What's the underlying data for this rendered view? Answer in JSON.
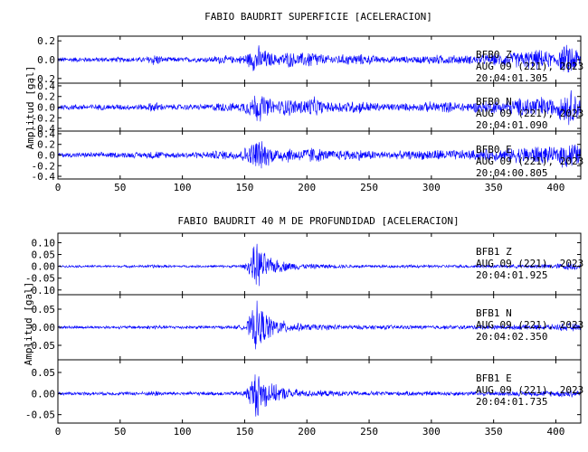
{
  "chart_data": [
    {
      "type": "line",
      "title": "FABIO BAUDRIT SUPERFICIE [ACELERACION]",
      "xlabel": "",
      "ylabel": "Amplitud [gal]",
      "xlim": [
        0,
        420
      ],
      "xticks": [
        0,
        50,
        100,
        150,
        200,
        250,
        300,
        350,
        400
      ],
      "line_color": "#0000ff",
      "grid": false,
      "panels": [
        {
          "name": "BFB0 Z",
          "ylim": [
            -0.25,
            0.25
          ],
          "yticks": [
            0.2,
            0.0,
            -0.2
          ],
          "ytick_labels": [
            "0.2",
            "0.0",
            "-0.2"
          ],
          "annotation": [
            "BFB0   Z",
            "AUG 09 (221), 2023",
            "20:04:01.305"
          ],
          "envelope": [
            [
              0,
              0.03
            ],
            [
              70,
              0.03
            ],
            [
              78,
              0.08
            ],
            [
              85,
              0.03
            ],
            [
              120,
              0.03
            ],
            [
              130,
              0.05
            ],
            [
              145,
              0.04
            ],
            [
              155,
              0.1
            ],
            [
              160,
              0.19
            ],
            [
              163,
              0.14
            ],
            [
              175,
              0.06
            ],
            [
              185,
              0.1
            ],
            [
              192,
              0.07
            ],
            [
              205,
              0.11
            ],
            [
              215,
              0.05
            ],
            [
              240,
              0.07
            ],
            [
              260,
              0.04
            ],
            [
              290,
              0.04
            ],
            [
              300,
              0.06
            ],
            [
              330,
              0.05
            ],
            [
              360,
              0.08
            ],
            [
              385,
              0.12
            ],
            [
              400,
              0.08
            ],
            [
              405,
              0.15
            ],
            [
              412,
              0.2
            ],
            [
              420,
              0.1
            ]
          ]
        },
        {
          "name": "BFB0 N",
          "ylim": [
            -0.45,
            0.45
          ],
          "yticks": [
            0.4,
            0.2,
            0.0,
            -0.2,
            -0.4
          ],
          "ytick_labels": [
            "0.4",
            "0.2",
            "0.0",
            "-0.2",
            "-0.4"
          ],
          "annotation": [
            "BFB0   N",
            "AUG 09 (221), 2023",
            "20:04:01.090"
          ],
          "envelope": [
            [
              0,
              0.06
            ],
            [
              70,
              0.06
            ],
            [
              78,
              0.12
            ],
            [
              85,
              0.06
            ],
            [
              120,
              0.06
            ],
            [
              130,
              0.1
            ],
            [
              145,
              0.08
            ],
            [
              155,
              0.2
            ],
            [
              160,
              0.35
            ],
            [
              163,
              0.28
            ],
            [
              175,
              0.12
            ],
            [
              185,
              0.2
            ],
            [
              192,
              0.14
            ],
            [
              205,
              0.22
            ],
            [
              215,
              0.1
            ],
            [
              240,
              0.14
            ],
            [
              260,
              0.08
            ],
            [
              290,
              0.08
            ],
            [
              300,
              0.12
            ],
            [
              330,
              0.1
            ],
            [
              360,
              0.15
            ],
            [
              385,
              0.24
            ],
            [
              400,
              0.16
            ],
            [
              405,
              0.3
            ],
            [
              412,
              0.38
            ],
            [
              420,
              0.2
            ]
          ]
        },
        {
          "name": "BFB0 E",
          "ylim": [
            -0.45,
            0.45
          ],
          "yticks": [
            0.4,
            0.2,
            0.0,
            -0.2,
            -0.4
          ],
          "ytick_labels": [
            "0.4",
            "0.2",
            "0.0",
            "-0.2",
            "-0.4"
          ],
          "annotation": [
            "BFB0   E",
            "AUG 09 (221), 2023",
            "20:04:00.805"
          ],
          "envelope": [
            [
              0,
              0.05
            ],
            [
              70,
              0.06
            ],
            [
              78,
              0.1
            ],
            [
              85,
              0.06
            ],
            [
              120,
              0.07
            ],
            [
              130,
              0.1
            ],
            [
              145,
              0.1
            ],
            [
              155,
              0.22
            ],
            [
              160,
              0.4
            ],
            [
              163,
              0.3
            ],
            [
              175,
              0.14
            ],
            [
              185,
              0.16
            ],
            [
              192,
              0.12
            ],
            [
              205,
              0.18
            ],
            [
              215,
              0.1
            ],
            [
              240,
              0.12
            ],
            [
              260,
              0.08
            ],
            [
              290,
              0.09
            ],
            [
              300,
              0.12
            ],
            [
              330,
              0.1
            ],
            [
              360,
              0.14
            ],
            [
              385,
              0.2
            ],
            [
              400,
              0.15
            ],
            [
              405,
              0.26
            ],
            [
              412,
              0.3
            ],
            [
              420,
              0.18
            ]
          ]
        }
      ]
    },
    {
      "type": "line",
      "title": "FABIO BAUDRIT 40 M DE PROFUNDIDAD [ACELERACION]",
      "xlabel": "",
      "ylabel": "Amplitud [gal]",
      "xlim": [
        0,
        420
      ],
      "xticks": [
        0,
        50,
        100,
        150,
        200,
        250,
        300,
        350,
        400
      ],
      "line_color": "#0000ff",
      "grid": false,
      "panels": [
        {
          "name": "BFB1 Z",
          "ylim": [
            -0.12,
            0.14
          ],
          "yticks": [
            0.1,
            0.05,
            0.0,
            -0.05,
            -0.1
          ],
          "ytick_labels": [
            "0.10",
            "0.05",
            "0.00",
            "-0.05",
            "-0.10"
          ],
          "annotation": [
            "BFB1   Z",
            "AUG 09 (221), 2023",
            "20:04:01.925"
          ],
          "envelope": [
            [
              0,
              0.005
            ],
            [
              70,
              0.006
            ],
            [
              78,
              0.01
            ],
            [
              85,
              0.006
            ],
            [
              140,
              0.006
            ],
            [
              150,
              0.01
            ],
            [
              155,
              0.05
            ],
            [
              159,
              0.12
            ],
            [
              162,
              0.09
            ],
            [
              170,
              0.04
            ],
            [
              185,
              0.02
            ],
            [
              200,
              0.012
            ],
            [
              240,
              0.008
            ],
            [
              300,
              0.007
            ],
            [
              360,
              0.008
            ],
            [
              400,
              0.012
            ],
            [
              412,
              0.02
            ],
            [
              420,
              0.01
            ]
          ]
        },
        {
          "name": "BFB1 N",
          "ylim": [
            -0.09,
            0.09
          ],
          "yticks": [
            0.05,
            0.0,
            -0.05
          ],
          "ytick_labels": [
            "0.05",
            "0.00",
            "-0.05"
          ],
          "annotation": [
            "BFB1   N",
            "AUG 09 (221), 2023",
            "20:04:02.350"
          ],
          "envelope": [
            [
              0,
              0.004
            ],
            [
              70,
              0.005
            ],
            [
              78,
              0.008
            ],
            [
              85,
              0.005
            ],
            [
              140,
              0.005
            ],
            [
              150,
              0.008
            ],
            [
              155,
              0.04
            ],
            [
              159,
              0.08
            ],
            [
              163,
              0.06
            ],
            [
              172,
              0.03
            ],
            [
              185,
              0.016
            ],
            [
              200,
              0.01
            ],
            [
              240,
              0.007
            ],
            [
              300,
              0.006
            ],
            [
              360,
              0.007
            ],
            [
              400,
              0.009
            ],
            [
              412,
              0.014
            ],
            [
              420,
              0.008
            ]
          ]
        },
        {
          "name": "BFB1 E",
          "ylim": [
            -0.07,
            0.08
          ],
          "yticks": [
            0.05,
            0.0,
            -0.05
          ],
          "ytick_labels": [
            "0.05",
            "0.00",
            "-0.05"
          ],
          "annotation": [
            "BFB1   E",
            "AUG 09 (221), 2023",
            "20:04:01.735"
          ],
          "envelope": [
            [
              0,
              0.004
            ],
            [
              70,
              0.005
            ],
            [
              78,
              0.008
            ],
            [
              85,
              0.005
            ],
            [
              140,
              0.005
            ],
            [
              150,
              0.008
            ],
            [
              155,
              0.035
            ],
            [
              159,
              0.065
            ],
            [
              163,
              0.05
            ],
            [
              172,
              0.025
            ],
            [
              185,
              0.014
            ],
            [
              200,
              0.009
            ],
            [
              240,
              0.006
            ],
            [
              300,
              0.006
            ],
            [
              360,
              0.006
            ],
            [
              400,
              0.008
            ],
            [
              412,
              0.012
            ],
            [
              420,
              0.007
            ]
          ]
        }
      ]
    }
  ]
}
